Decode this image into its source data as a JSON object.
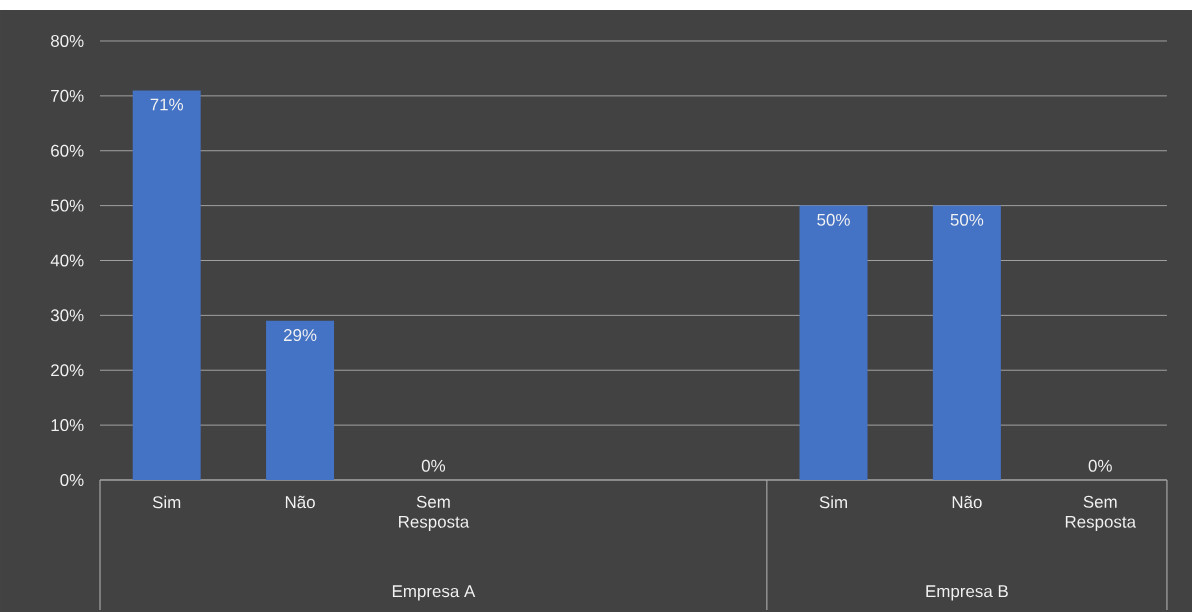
{
  "chart_data": {
    "type": "bar",
    "categories": [
      "Sim",
      "Não",
      "Sem Resposta",
      null,
      null,
      "Sim",
      "Não",
      "Sem Resposta"
    ],
    "values": [
      71,
      29,
      0,
      null,
      null,
      50,
      50,
      0
    ],
    "value_labels": [
      "71%",
      "29%",
      "0%",
      null,
      null,
      "50%",
      "50%",
      "0%"
    ],
    "color": "#4472c4",
    "ylim": [
      0,
      80
    ],
    "yticks": [
      {
        "value": 0,
        "label": "0%"
      },
      {
        "value": 10,
        "label": "10%"
      },
      {
        "value": 20,
        "label": "20%"
      },
      {
        "value": 30,
        "label": "30%"
      },
      {
        "value": 40,
        "label": "40%"
      },
      {
        "value": 50,
        "label": "50%"
      },
      {
        "value": 60,
        "label": "60%"
      },
      {
        "value": 70,
        "label": "70%"
      },
      {
        "value": 80,
        "label": "80%"
      }
    ],
    "grid": "y",
    "annotations": [
      "Empresa A",
      "Empresa B"
    ]
  }
}
